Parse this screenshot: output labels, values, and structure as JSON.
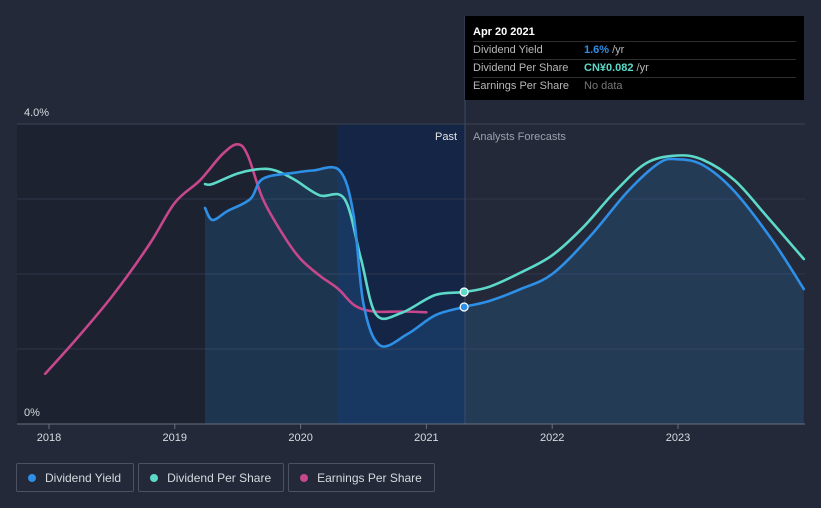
{
  "chart_data": {
    "type": "line",
    "x_tick_labels": [
      "2018",
      "2019",
      "2020",
      "2021",
      "2022",
      "2023"
    ],
    "y_tick_labels": [
      "4.0%",
      "0%"
    ],
    "ylim": [
      0,
      4.0
    ],
    "y_unit": "%",
    "past_label": "Past",
    "forecast_label": "Analysts Forecasts",
    "present_date": 2021.3,
    "series": [
      {
        "name": "Dividend Yield",
        "key": "dividend_yield",
        "color": "#2e8fe6",
        "filled": true,
        "points": [
          [
            2019.24,
            2.88
          ],
          [
            2019.3,
            2.72
          ],
          [
            2019.42,
            2.84
          ],
          [
            2019.6,
            3.0
          ],
          [
            2019.7,
            3.27
          ],
          [
            2019.95,
            3.35
          ],
          [
            2020.1,
            3.38
          ],
          [
            2020.31,
            3.38
          ],
          [
            2020.42,
            2.8
          ],
          [
            2020.5,
            1.6
          ],
          [
            2020.63,
            1.05
          ],
          [
            2020.85,
            1.2
          ],
          [
            2021.07,
            1.45
          ],
          [
            2021.3,
            1.56
          ],
          [
            2021.5,
            1.64
          ],
          [
            2021.75,
            1.8
          ],
          [
            2022.0,
            2.0
          ],
          [
            2022.3,
            2.5
          ],
          [
            2022.6,
            3.1
          ],
          [
            2022.85,
            3.48
          ],
          [
            2023.0,
            3.53
          ],
          [
            2023.2,
            3.45
          ],
          [
            2023.45,
            3.1
          ],
          [
            2023.75,
            2.45
          ],
          [
            2024.0,
            1.8
          ]
        ]
      },
      {
        "name": "Dividend Per Share",
        "key": "dividend_per_share",
        "color": "#5dd9c9",
        "filled": false,
        "points": [
          [
            2019.24,
            3.2
          ],
          [
            2019.3,
            3.2
          ],
          [
            2019.5,
            3.34
          ],
          [
            2019.68,
            3.4
          ],
          [
            2019.8,
            3.38
          ],
          [
            2019.95,
            3.26
          ],
          [
            2020.15,
            3.05
          ],
          [
            2020.35,
            3.0
          ],
          [
            2020.48,
            2.2
          ],
          [
            2020.6,
            1.46
          ],
          [
            2020.8,
            1.48
          ],
          [
            2021.07,
            1.72
          ],
          [
            2021.3,
            1.76
          ],
          [
            2021.5,
            1.83
          ],
          [
            2021.75,
            2.02
          ],
          [
            2022.0,
            2.25
          ],
          [
            2022.25,
            2.63
          ],
          [
            2022.5,
            3.1
          ],
          [
            2022.75,
            3.48
          ],
          [
            2023.0,
            3.58
          ],
          [
            2023.2,
            3.52
          ],
          [
            2023.45,
            3.25
          ],
          [
            2023.7,
            2.78
          ],
          [
            2024.0,
            2.2
          ]
        ]
      },
      {
        "name": "Earnings Per Share",
        "key": "earnings_per_share",
        "color": "#c7478c",
        "filled": false,
        "points": [
          [
            2017.97,
            0.67
          ],
          [
            2018.2,
            1.1
          ],
          [
            2018.5,
            1.7
          ],
          [
            2018.8,
            2.4
          ],
          [
            2019.0,
            2.95
          ],
          [
            2019.2,
            3.25
          ],
          [
            2019.38,
            3.6
          ],
          [
            2019.5,
            3.73
          ],
          [
            2019.58,
            3.58
          ],
          [
            2019.7,
            3.0
          ],
          [
            2019.87,
            2.5
          ],
          [
            2020.0,
            2.2
          ],
          [
            2020.15,
            1.98
          ],
          [
            2020.3,
            1.8
          ],
          [
            2020.43,
            1.58
          ],
          [
            2020.58,
            1.5
          ],
          [
            2020.8,
            1.5
          ],
          [
            2021.0,
            1.49
          ]
        ]
      }
    ],
    "markers": [
      {
        "series": "dividend_per_share",
        "x": 2021.3,
        "y": 1.76
      },
      {
        "series": "dividend_yield",
        "x": 2021.3,
        "y": 1.56
      }
    ]
  },
  "tooltip": {
    "date": "Apr 20 2021",
    "rows": [
      {
        "label": "Dividend Yield",
        "value": "1.6%",
        "unit": "/yr",
        "color": "#2e8fe6"
      },
      {
        "label": "Dividend Per Share",
        "value": "CN¥0.082",
        "unit": "/yr",
        "color": "#5dd9c9"
      },
      {
        "label": "Earnings Per Share",
        "value": "",
        "unit": "",
        "nodata": "No data"
      }
    ]
  },
  "legend": [
    {
      "label": "Dividend Yield",
      "color": "#2e8fe6"
    },
    {
      "label": "Dividend Per Share",
      "color": "#5dd9c9"
    },
    {
      "label": "Earnings Per Share",
      "color": "#c7478c"
    }
  ]
}
